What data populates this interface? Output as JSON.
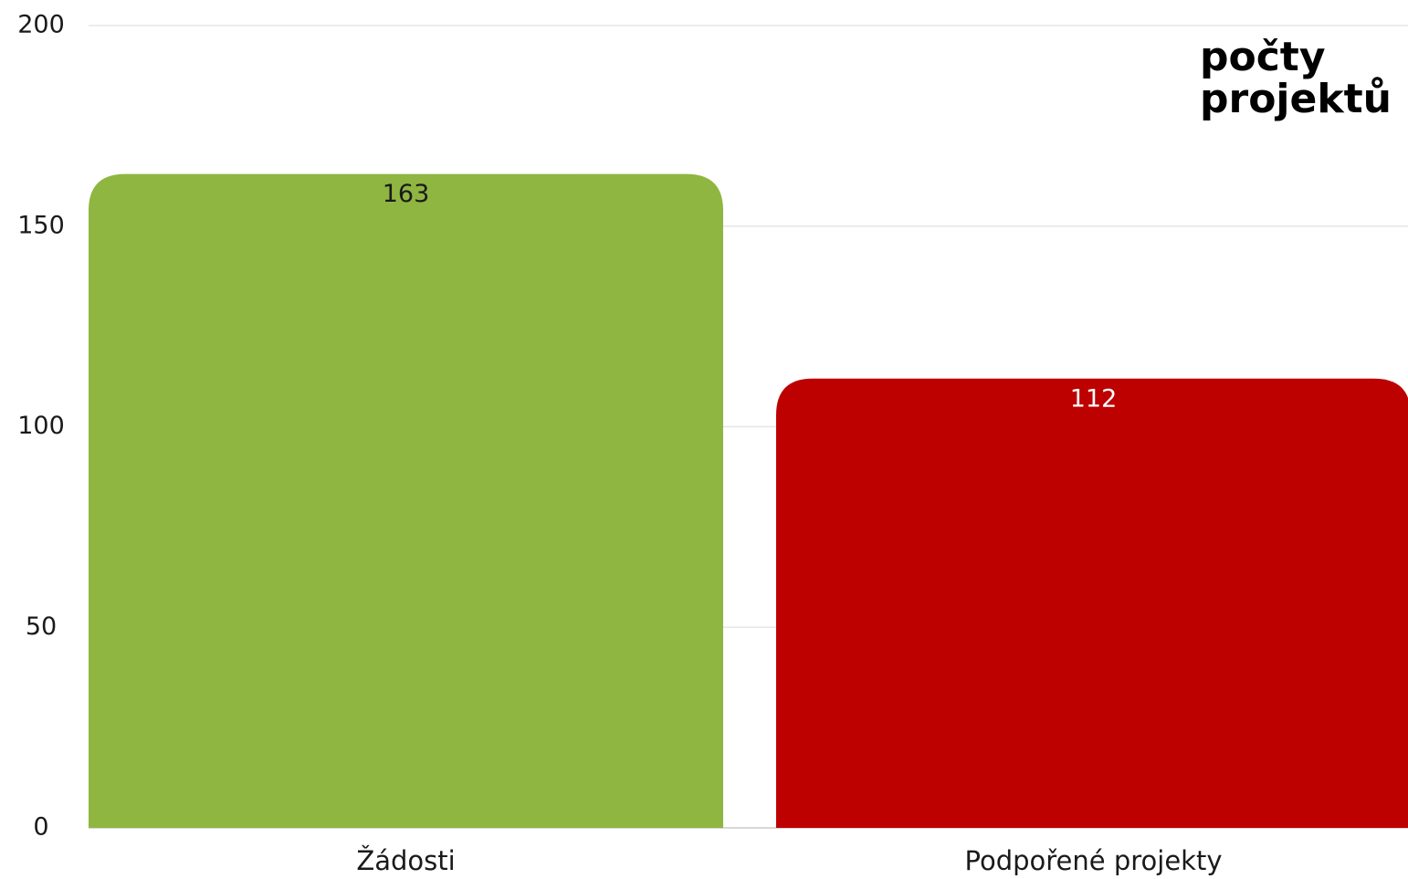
{
  "chart_data": {
    "type": "bar",
    "title": "počty projektů",
    "categories": [
      "Žádosti",
      "Podpořené projekty"
    ],
    "values": [
      163,
      112
    ],
    "colors": [
      "#8fb641",
      "#bd0000"
    ],
    "label_colors": [
      "#1a1a1a",
      "#ffffff"
    ],
    "ylim": [
      0,
      200
    ],
    "yticks": [
      0,
      50,
      100,
      150,
      200
    ],
    "grid": true
  }
}
